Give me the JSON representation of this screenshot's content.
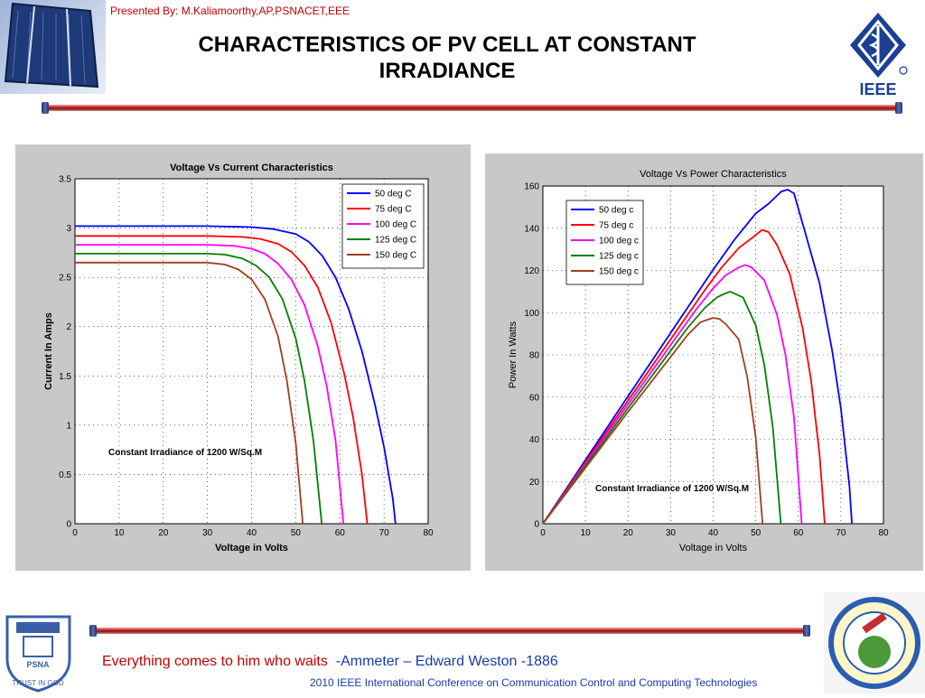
{
  "header": {
    "presenter": "Presented By: M.Kaliamoorthy,AP,PSNACET,EEE",
    "title": "CHARACTERISTICS OF PV CELL AT CONSTANT IRRADIANCE",
    "ieee_text": "IEEE"
  },
  "footer": {
    "quote": "Everything comes to him who waits",
    "quote_attribution": "-Ammeter – Edward Weston -1886",
    "conference": "2010 IEEE International Conference on Communication Control and Computing Technologies",
    "psna_motto": "TRUST IN GOD",
    "psna_name": "PSNA"
  },
  "colors": {
    "series": [
      "#0000ff",
      "#ff0000",
      "#ff00ff",
      "#008000",
      "#a0401a"
    ],
    "title_red": "#c00000",
    "footer_blue": "#1a3aa8"
  },
  "chart_data": [
    {
      "type": "line",
      "title": "Voltage Vs Current Characteristics",
      "xlabel": "Voltage in Volts",
      "ylabel": "Current In Amps",
      "xlim": [
        0,
        80
      ],
      "ylim": [
        0,
        3.5
      ],
      "xticks": [
        0,
        10,
        20,
        30,
        40,
        50,
        60,
        70,
        80
      ],
      "yticks": [
        0,
        0.5,
        1,
        1.5,
        2,
        2.5,
        3,
        3.5
      ],
      "ytick_labels": [
        "0",
        "0.5",
        "1",
        "1.5",
        "2",
        "2.5",
        "3",
        "3.5"
      ],
      "grid": true,
      "legend_position": "top-right",
      "annotation": "Constant Irradiance of 1200 W/Sq.M",
      "series": [
        {
          "name": "50  deg C",
          "x": [
            0,
            20,
            30,
            40,
            45,
            50,
            53,
            56,
            59,
            62,
            65,
            68,
            70,
            72,
            72.6
          ],
          "y": [
            3.02,
            3.02,
            3.02,
            3.01,
            2.99,
            2.94,
            2.86,
            2.72,
            2.5,
            2.18,
            1.75,
            1.2,
            0.78,
            0.25,
            0
          ]
        },
        {
          "name": "75  deg C",
          "x": [
            0,
            20,
            30,
            38,
            42,
            46,
            49,
            52,
            55,
            58,
            61,
            63,
            65,
            66.2
          ],
          "y": [
            2.92,
            2.92,
            2.92,
            2.91,
            2.89,
            2.84,
            2.76,
            2.62,
            2.4,
            2.04,
            1.52,
            1.08,
            0.5,
            0
          ]
        },
        {
          "name": "100 deg C",
          "x": [
            0,
            20,
            30,
            36,
            40,
            43,
            46,
            49,
            52,
            55,
            57,
            59,
            60.8
          ],
          "y": [
            2.83,
            2.83,
            2.83,
            2.82,
            2.79,
            2.74,
            2.64,
            2.48,
            2.22,
            1.8,
            1.4,
            0.85,
            0
          ]
        },
        {
          "name": "125 deg C",
          "x": [
            0,
            20,
            30,
            34,
            38,
            41,
            44,
            47,
            50,
            52,
            54,
            55.9
          ],
          "y": [
            2.74,
            2.74,
            2.74,
            2.73,
            2.69,
            2.62,
            2.5,
            2.28,
            1.88,
            1.45,
            0.85,
            0
          ]
        },
        {
          "name": "150 deg C",
          "x": [
            0,
            20,
            30,
            34,
            37,
            40,
            43,
            46,
            48,
            50,
            51.6
          ],
          "y": [
            2.65,
            2.65,
            2.65,
            2.63,
            2.58,
            2.48,
            2.28,
            1.9,
            1.45,
            0.82,
            0
          ]
        }
      ]
    },
    {
      "type": "line",
      "title": "Voltage Vs Power Characteristics",
      "xlabel": "Voltage in Volts",
      "ylabel": "Power In Watts",
      "xlim": [
        0,
        80
      ],
      "ylim": [
        0,
        160
      ],
      "xticks": [
        0,
        10,
        20,
        30,
        40,
        50,
        60,
        70,
        80
      ],
      "yticks": [
        0,
        20,
        40,
        60,
        80,
        100,
        120,
        140,
        160
      ],
      "ytick_labels": [
        "0",
        "20",
        "40",
        "60",
        "80",
        "100",
        "120",
        "140",
        "160"
      ],
      "grid": true,
      "legend_position": "top-left",
      "annotation": "Constant Irradiance of 1200 W/Sq.M",
      "series": [
        {
          "name": "50 deg c",
          "x": [
            0,
            20,
            40,
            45,
            50,
            53,
            56,
            57.5,
            59,
            62,
            65,
            68,
            70,
            72,
            72.6
          ],
          "y": [
            0,
            60.4,
            120.4,
            134.6,
            147,
            151.6,
            157.4,
            158.3,
            156.5,
            135.2,
            113.8,
            81.6,
            54.6,
            18,
            0
          ]
        },
        {
          "name": "75  deg c",
          "x": [
            0,
            20,
            38,
            42,
            46,
            49,
            51.5,
            53,
            55,
            58,
            61,
            63,
            65,
            66.2
          ],
          "y": [
            0,
            58.4,
            110.6,
            121.4,
            130.6,
            135.2,
            139.2,
            138.2,
            132,
            118.3,
            92.7,
            68,
            32.5,
            0
          ]
        },
        {
          "name": "100 deg c",
          "x": [
            0,
            20,
            36,
            40,
            43,
            46,
            47.5,
            49,
            52,
            55,
            57,
            59,
            60.8
          ],
          "y": [
            0,
            56.6,
            101.5,
            111.6,
            117.8,
            121.4,
            122.6,
            121.5,
            115.4,
            99,
            79.8,
            50.2,
            0
          ]
        },
        {
          "name": "125 deg c",
          "x": [
            0,
            20,
            34,
            38,
            41,
            42.5,
            44,
            47,
            50,
            52,
            54,
            55.9
          ],
          "y": [
            0,
            54.8,
            92.8,
            102.2,
            107.4,
            108.8,
            110,
            107.2,
            94,
            75.4,
            45.9,
            0
          ]
        },
        {
          "name": "150 deg c",
          "x": [
            0,
            20,
            34,
            37,
            39,
            40,
            41.5,
            43,
            46,
            48,
            50,
            51.6
          ],
          "y": [
            0,
            53,
            89.4,
            95.5,
            96.9,
            97.5,
            97,
            94.5,
            87.4,
            69.6,
            41,
            0
          ]
        }
      ]
    }
  ]
}
